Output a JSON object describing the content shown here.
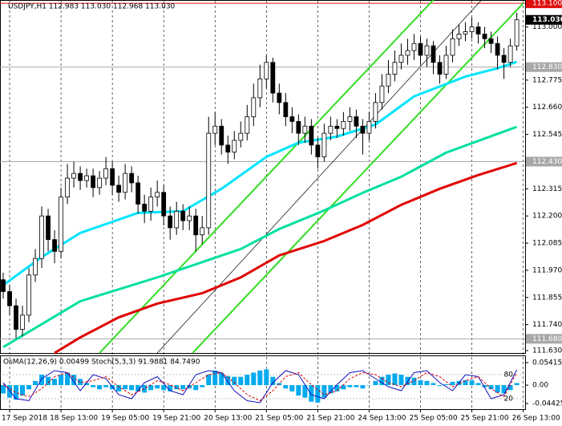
{
  "chart_data": [
    {
      "type": "candlestick",
      "title": "USDJPY,H1 112.983 113.030 112.968 113.030",
      "xlim": [
        -0.5,
        81.3
      ],
      "ylim": [
        111.62,
        113.114
      ],
      "xticks": [
        {
          "value": 1,
          "label": "17 Sep 2018"
        },
        {
          "value": 9,
          "label": "18 Sep 13:00"
        },
        {
          "value": 17,
          "label": "19 Sep 05:00"
        },
        {
          "value": 25,
          "label": "19 Sep 21:00"
        },
        {
          "value": 33,
          "label": "20 Sep 13:00"
        },
        {
          "value": 41,
          "label": "21 Sep 05:00"
        },
        {
          "value": 49,
          "label": "21 Sep 21:00"
        },
        {
          "value": 57,
          "label": "24 Sep 13:00"
        },
        {
          "value": 65,
          "label": "25 Sep 05:00"
        },
        {
          "value": 73,
          "label": "25 Sep 21:00"
        },
        {
          "value": 81,
          "label": "26 Sep 13:00"
        }
      ],
      "yticks": [
        {
          "value": 113,
          "label": "113.000"
        },
        112.775,
        {
          "value": 112.66,
          "label": "112.660"
        },
        112.545,
        112.315,
        {
          "value": 112.2,
          "label": "112.200"
        },
        112.085,
        {
          "value": 111.97,
          "label": "111.970"
        },
        111.855,
        {
          "value": 111.74,
          "label": "111.740"
        },
        {
          "value": 111.63,
          "label": "111.630"
        }
      ],
      "grid": true,
      "levels": [
        {
          "value": 113.1,
          "label": "113.100",
          "color": "#e01010"
        },
        {
          "value": 112.83,
          "label": "112.830",
          "color": "#a8a8a8"
        },
        {
          "value": 112.43,
          "label": "112.430",
          "color": "#a8a8a8"
        },
        {
          "value": 111.68,
          "label": "111.680",
          "color": "#a8a8a8"
        }
      ],
      "current_price": {
        "value": 113.03,
        "label": "113.030"
      },
      "open": [
        111.93,
        111.88,
        111.82,
        111.72,
        111.78,
        111.95,
        112.02,
        112.2,
        112.1,
        112.05,
        112.28,
        112.36,
        112.38,
        112.35,
        112.37,
        112.32,
        112.36,
        112.4,
        112.33,
        112.3,
        112.38,
        112.34,
        112.25,
        112.22,
        112.28,
        112.3,
        112.2,
        112.15,
        112.22,
        112.18,
        112.2,
        112.12,
        112.15,
        112.55,
        112.58,
        112.5,
        112.47,
        112.52,
        112.55,
        112.62,
        112.7,
        112.78,
        112.85,
        112.72,
        112.68,
        112.62,
        112.6,
        112.55,
        112.58,
        112.5,
        112.45,
        112.55,
        112.58,
        112.57,
        112.6,
        112.62,
        112.58,
        112.55,
        112.6,
        112.68,
        112.75,
        112.8,
        112.85,
        112.88,
        112.9,
        112.93,
        112.88,
        112.92,
        112.85,
        112.8,
        112.88,
        112.95,
        112.97,
        112.98,
        113.0,
        112.97,
        112.95,
        112.93,
        112.88,
        112.85,
        112.92
      ],
      "high": [
        111.96,
        111.91,
        111.85,
        111.82,
        111.98,
        112.06,
        112.24,
        112.23,
        112.14,
        112.32,
        112.42,
        112.43,
        112.41,
        112.4,
        112.4,
        112.39,
        112.45,
        112.43,
        112.37,
        112.42,
        112.41,
        112.37,
        112.29,
        112.32,
        112.35,
        112.33,
        112.24,
        112.26,
        112.25,
        112.24,
        112.23,
        112.2,
        112.62,
        112.64,
        112.61,
        112.54,
        112.56,
        112.6,
        112.67,
        112.76,
        112.84,
        112.88,
        112.87,
        112.76,
        112.72,
        112.66,
        112.63,
        112.62,
        112.61,
        112.53,
        112.59,
        112.62,
        112.61,
        112.64,
        112.66,
        112.65,
        112.61,
        112.64,
        112.72,
        112.8,
        112.86,
        112.9,
        112.93,
        112.95,
        112.97,
        112.96,
        112.95,
        112.94,
        112.88,
        112.92,
        112.99,
        113.01,
        113.02,
        113.04,
        113.02,
        113.0,
        112.98,
        112.96,
        112.91,
        112.95,
        113.06
      ],
      "low": [
        111.85,
        111.78,
        111.68,
        111.69,
        111.75,
        111.92,
        111.98,
        112.05,
        112.0,
        112.02,
        112.25,
        112.32,
        112.31,
        112.32,
        112.28,
        112.29,
        112.33,
        112.29,
        112.26,
        112.27,
        112.3,
        112.21,
        112.17,
        112.18,
        112.24,
        112.16,
        112.1,
        112.12,
        112.14,
        112.14,
        112.05,
        112.08,
        112.12,
        112.5,
        112.46,
        112.42,
        112.44,
        112.49,
        112.52,
        112.58,
        112.66,
        112.74,
        112.68,
        112.63,
        112.58,
        112.55,
        112.5,
        112.51,
        112.46,
        112.4,
        112.43,
        112.52,
        112.53,
        112.54,
        112.56,
        112.53,
        112.46,
        112.52,
        112.57,
        112.65,
        112.72,
        112.77,
        112.82,
        112.84,
        112.86,
        112.84,
        112.83,
        112.8,
        112.76,
        112.78,
        112.85,
        112.92,
        112.94,
        112.95,
        112.93,
        112.91,
        112.89,
        112.82,
        112.78,
        112.83,
        112.9
      ],
      "close": [
        111.88,
        111.82,
        111.72,
        111.78,
        111.95,
        112.02,
        112.2,
        112.1,
        112.05,
        112.28,
        112.36,
        112.38,
        112.35,
        112.37,
        112.32,
        112.36,
        112.4,
        112.33,
        112.3,
        112.38,
        112.34,
        112.25,
        112.22,
        112.28,
        112.3,
        112.2,
        112.15,
        112.22,
        112.18,
        112.2,
        112.12,
        112.15,
        112.55,
        112.58,
        112.5,
        112.47,
        112.52,
        112.55,
        112.62,
        112.7,
        112.78,
        112.85,
        112.72,
        112.68,
        112.62,
        112.6,
        112.55,
        112.58,
        112.5,
        112.45,
        112.55,
        112.58,
        112.57,
        112.6,
        112.62,
        112.58,
        112.55,
        112.6,
        112.68,
        112.75,
        112.8,
        112.85,
        112.88,
        112.9,
        112.93,
        112.88,
        112.92,
        112.85,
        112.8,
        112.88,
        112.95,
        112.97,
        112.98,
        113.0,
        112.97,
        112.95,
        112.93,
        112.88,
        112.85,
        112.92,
        113.03
      ],
      "series": [
        {
          "color": "#00e5ff",
          "x": [
            0,
            6,
            12,
            21,
            28,
            34,
            41,
            46,
            52,
            58,
            64,
            72,
            77,
            80
          ],
          "values": [
            111.907,
            112.026,
            112.128,
            112.213,
            112.22,
            112.315,
            112.45,
            112.51,
            112.536,
            112.587,
            112.706,
            112.79,
            112.825,
            112.852
          ]
        },
        {
          "color": "#00e0a0",
          "x": [
            0,
            12,
            24,
            37,
            43,
            50,
            56,
            62,
            69,
            80
          ],
          "values": [
            111.645,
            111.839,
            111.94,
            112.06,
            112.145,
            112.223,
            112.298,
            112.366,
            112.468,
            112.577
          ]
        },
        {
          "color": "#e00000",
          "x": [
            8,
            12,
            18,
            24,
            31,
            37,
            43,
            50,
            56,
            62,
            68,
            74,
            80
          ],
          "values": [
            111.62,
            111.686,
            111.771,
            111.829,
            111.873,
            111.94,
            112.033,
            112.094,
            112.162,
            112.247,
            112.315,
            112.373,
            112.424
          ]
        }
      ],
      "trendlines": [
        {
          "color": "#33dd22",
          "x": [
            15,
            67
          ],
          "values": [
            111.62,
            113.114
          ]
        },
        {
          "color": "#33dd22",
          "x": [
            29.5,
            81
          ],
          "values": [
            111.62,
            113.1
          ]
        },
        {
          "color": "#000000",
          "x": [
            24,
            74.5
          ],
          "values": [
            111.62,
            113.114
          ]
        }
      ]
    },
    {
      "type": "oscillator",
      "title": "OsMA(12,26,9) 0.00499 Stoch(5,3,3) 91.9881 84.7490",
      "color": "#00aaee",
      "ylim": [
        -0.0578,
        0.0696
      ],
      "yticks": [
        0.05415,
        {
          "value": 0,
          "label": "0.00"
        },
        -0.04425
      ],
      "values": [
        -0.02,
        -0.03,
        -0.035,
        -0.025,
        -0.01,
        0.01,
        0.025,
        0.02,
        0.015,
        0.025,
        0.03,
        0.025,
        0.015,
        0.005,
        -0.005,
        -0.01,
        -0.005,
        -0.01,
        -0.015,
        -0.01,
        -0.012,
        -0.015,
        -0.018,
        -0.012,
        -0.008,
        -0.012,
        -0.015,
        -0.01,
        -0.01,
        -0.008,
        -0.012,
        -0.005,
        0.025,
        0.035,
        0.03,
        0.022,
        0.02,
        0.02,
        0.025,
        0.03,
        0.035,
        0.038,
        0.02,
        0.005,
        -0.008,
        -0.015,
        -0.025,
        -0.03,
        -0.04,
        -0.042,
        -0.03,
        -0.02,
        -0.015,
        -0.01,
        -0.005,
        -0.005,
        -0.008,
        0,
        0.01,
        0.02,
        0.025,
        0.028,
        0.025,
        0.02,
        0.018,
        0.012,
        0.01,
        0.005,
        -0.002,
        0.002,
        0.008,
        0.01,
        0.012,
        0.012,
        0.005,
        -0.005,
        -0.01,
        -0.018,
        -0.02,
        -0.012,
        0.005
      ],
      "y2lim": [
        -6,
        126
      ],
      "y2ticks": [
        80,
        20
      ],
      "series": [
        {
          "color": "#1010c0",
          "axis": "y2",
          "x": [
            0,
            2,
            4,
            6,
            8,
            10,
            12,
            14,
            16,
            18,
            20,
            22,
            24,
            26,
            28,
            30,
            32,
            34,
            36,
            38,
            40,
            42,
            44,
            46,
            48,
            50,
            52,
            54,
            56,
            58,
            60,
            62,
            64,
            66,
            68,
            70,
            72,
            74,
            76,
            78,
            80
          ],
          "values": [
            60,
            20,
            15,
            70,
            90,
            85,
            40,
            80,
            70,
            30,
            20,
            60,
            75,
            40,
            30,
            80,
            90,
            85,
            40,
            15,
            10,
            60,
            90,
            80,
            30,
            20,
            55,
            85,
            90,
            70,
            50,
            40,
            85,
            90,
            60,
            40,
            80,
            75,
            20,
            30,
            92
          ]
        },
        {
          "color": "#e00000",
          "axis": "y2",
          "dashed": true,
          "x": [
            0,
            2,
            4,
            6,
            8,
            10,
            12,
            14,
            16,
            18,
            20,
            22,
            24,
            26,
            28,
            30,
            32,
            34,
            36,
            38,
            40,
            42,
            44,
            46,
            48,
            50,
            52,
            54,
            56,
            58,
            60,
            62,
            64,
            66,
            68,
            70,
            72,
            74,
            76,
            78,
            80
          ],
          "values": [
            55,
            35,
            25,
            45,
            75,
            85,
            60,
            65,
            75,
            50,
            30,
            45,
            65,
            55,
            40,
            60,
            80,
            85,
            60,
            30,
            15,
            40,
            75,
            85,
            55,
            30,
            40,
            70,
            85,
            80,
            60,
            50,
            65,
            85,
            75,
            50,
            65,
            75,
            45,
            25,
            85
          ]
        }
      ]
    }
  ]
}
